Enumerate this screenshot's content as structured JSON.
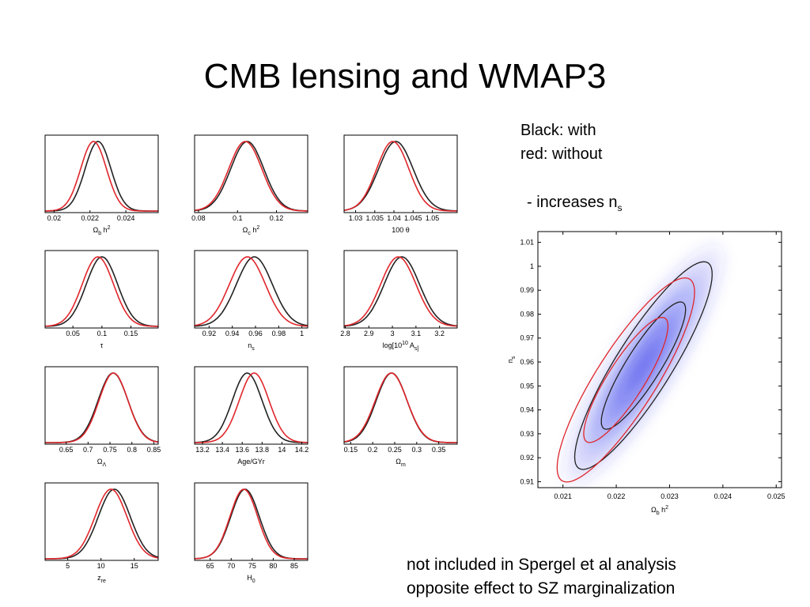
{
  "title": "CMB lensing and WMAP3",
  "legend": {
    "line1": "Black: with",
    "line2": "red: without"
  },
  "effect": {
    "text": "- increases n",
    "sub": "s"
  },
  "footer": {
    "line1": "not included in Spergel et al analysis",
    "line2": "opposite effect to SZ marginalization"
  },
  "colors": {
    "with": "#222222",
    "without": "#e0262b",
    "density": "#2a2ee8"
  },
  "chart_data": [
    {
      "type": "line",
      "xlabel": "Ω_b h^2",
      "xticks": [
        "0.02",
        "0.022",
        "0.024"
      ],
      "xlim": [
        0.0195,
        0.0258
      ],
      "series": [
        {
          "name": "with",
          "color": "#222222",
          "mean": 0.02245,
          "sd": 0.00072
        },
        {
          "name": "without",
          "color": "#e0262b",
          "mean": 0.0222,
          "sd": 0.00072
        }
      ]
    },
    {
      "type": "line",
      "xlabel": "Ω_c h^2",
      "xticks": [
        "0.08",
        "0.1",
        "0.12"
      ],
      "xlim": [
        0.078,
        0.136
      ],
      "series": [
        {
          "name": "with",
          "color": "#222222",
          "mean": 0.105,
          "sd": 0.0085
        },
        {
          "name": "without",
          "color": "#e0262b",
          "mean": 0.104,
          "sd": 0.0085
        }
      ]
    },
    {
      "type": "line",
      "xlabel": "100 θ",
      "xticks": [
        "1.03",
        "1.035",
        "1.04",
        "1.045",
        "1.05"
      ],
      "xlim": [
        1.027,
        1.0565
      ],
      "series": [
        {
          "name": "with",
          "color": "#222222",
          "mean": 1.0405,
          "sd": 0.0045
        },
        {
          "name": "without",
          "color": "#e0262b",
          "mean": 1.0397,
          "sd": 0.0042
        }
      ]
    },
    {
      "type": "line",
      "xlabel": "τ",
      "xticks": [
        "0.05",
        "0.1",
        "0.15"
      ],
      "xlim": [
        0.002,
        0.197
      ],
      "series": [
        {
          "name": "with",
          "color": "#222222",
          "mean": 0.1,
          "sd": 0.027
        },
        {
          "name": "without",
          "color": "#e0262b",
          "mean": 0.093,
          "sd": 0.027
        }
      ]
    },
    {
      "type": "line",
      "xlabel": "n_s",
      "xticks": [
        "0.92",
        "0.94",
        "0.96",
        "0.98",
        "1"
      ],
      "xlim": [
        0.9075,
        1.005
      ],
      "series": [
        {
          "name": "with",
          "color": "#222222",
          "mean": 0.959,
          "sd": 0.0155
        },
        {
          "name": "without",
          "color": "#e0262b",
          "mean": 0.953,
          "sd": 0.0155
        }
      ]
    },
    {
      "type": "line",
      "xlabel": "log[10^10 A_s]",
      "xticks": [
        "2.8",
        "2.9",
        "3",
        "3.1",
        "3.2"
      ],
      "xlim": [
        2.795,
        3.275
      ],
      "series": [
        {
          "name": "with",
          "color": "#222222",
          "mean": 3.04,
          "sd": 0.075
        },
        {
          "name": "without",
          "color": "#e0262b",
          "mean": 3.025,
          "sd": 0.075
        }
      ]
    },
    {
      "type": "line",
      "xlabel": "Ω_Λ",
      "xticks": [
        "0.65",
        "0.7",
        "0.75",
        "0.8",
        "0.85"
      ],
      "xlim": [
        0.602,
        0.86
      ],
      "series": [
        {
          "name": "with",
          "color": "#222222",
          "mean": 0.757,
          "sd": 0.034
        },
        {
          "name": "without",
          "color": "#e0262b",
          "mean": 0.758,
          "sd": 0.033
        }
      ]
    },
    {
      "type": "line",
      "xlabel": "Age/GYr",
      "xticks": [
        "13.2",
        "13.4",
        "13.6",
        "13.8",
        "14",
        "14.2"
      ],
      "xlim": [
        13.12,
        14.26
      ],
      "series": [
        {
          "name": "with",
          "color": "#222222",
          "mean": 13.65,
          "sd": 0.15
        },
        {
          "name": "without",
          "color": "#e0262b",
          "mean": 13.72,
          "sd": 0.15
        }
      ]
    },
    {
      "type": "line",
      "xlabel": "Ω_m",
      "xticks": [
        "0.15",
        "0.2",
        "0.25",
        "0.3",
        "0.35"
      ],
      "xlim": [
        0.135,
        0.392
      ],
      "series": [
        {
          "name": "with",
          "color": "#222222",
          "mean": 0.243,
          "sd": 0.035
        },
        {
          "name": "without",
          "color": "#e0262b",
          "mean": 0.242,
          "sd": 0.036
        }
      ]
    },
    {
      "type": "line",
      "xlabel": "z_re",
      "xticks": [
        "5",
        "10",
        "15"
      ],
      "xlim": [
        1.6,
        18.6
      ],
      "series": [
        {
          "name": "with",
          "color": "#222222",
          "mean": 12.0,
          "sd": 2.4
        },
        {
          "name": "without",
          "color": "#e0262b",
          "mean": 11.5,
          "sd": 2.4
        }
      ]
    },
    {
      "type": "line",
      "xlabel": "H_0",
      "xticks": [
        "65",
        "70",
        "75",
        "80",
        "85"
      ],
      "xlim": [
        61.3,
        88.2
      ],
      "series": [
        {
          "name": "with",
          "color": "#222222",
          "mean": 73.3,
          "sd": 3.4
        },
        {
          "name": "without",
          "color": "#e0262b",
          "mean": 73.0,
          "sd": 3.3
        }
      ]
    },
    {
      "type": "contour",
      "xlabel": "Ω_b h^2",
      "ylabel": "n_s",
      "xlim": [
        0.02053,
        0.0251
      ],
      "ylim": [
        0.9075,
        1.0145
      ],
      "xticks": [
        "0.021",
        "0.022",
        "0.023",
        "0.024",
        "0.025"
      ],
      "yticks": [
        "0.91",
        "0.92",
        "0.93",
        "0.94",
        "0.95",
        "0.96",
        "0.97",
        "0.98",
        "0.99",
        "1",
        "1.01"
      ],
      "density": {
        "center": [
          0.02251,
          0.9585
        ],
        "sd_x": 0.00052,
        "sd_y": 0.0175,
        "rho": 0.88
      },
      "series": [
        {
          "name": "with",
          "color": "#222222",
          "center": [
            0.02251,
            0.9585
          ],
          "sd_x": 0.00052,
          "sd_y": 0.0175,
          "rho": 0.88
        },
        {
          "name": "without",
          "color": "#e0262b",
          "center": [
            0.02218,
            0.9525
          ],
          "sd_x": 0.00052,
          "sd_y": 0.0172,
          "rho": 0.86
        }
      ]
    }
  ]
}
